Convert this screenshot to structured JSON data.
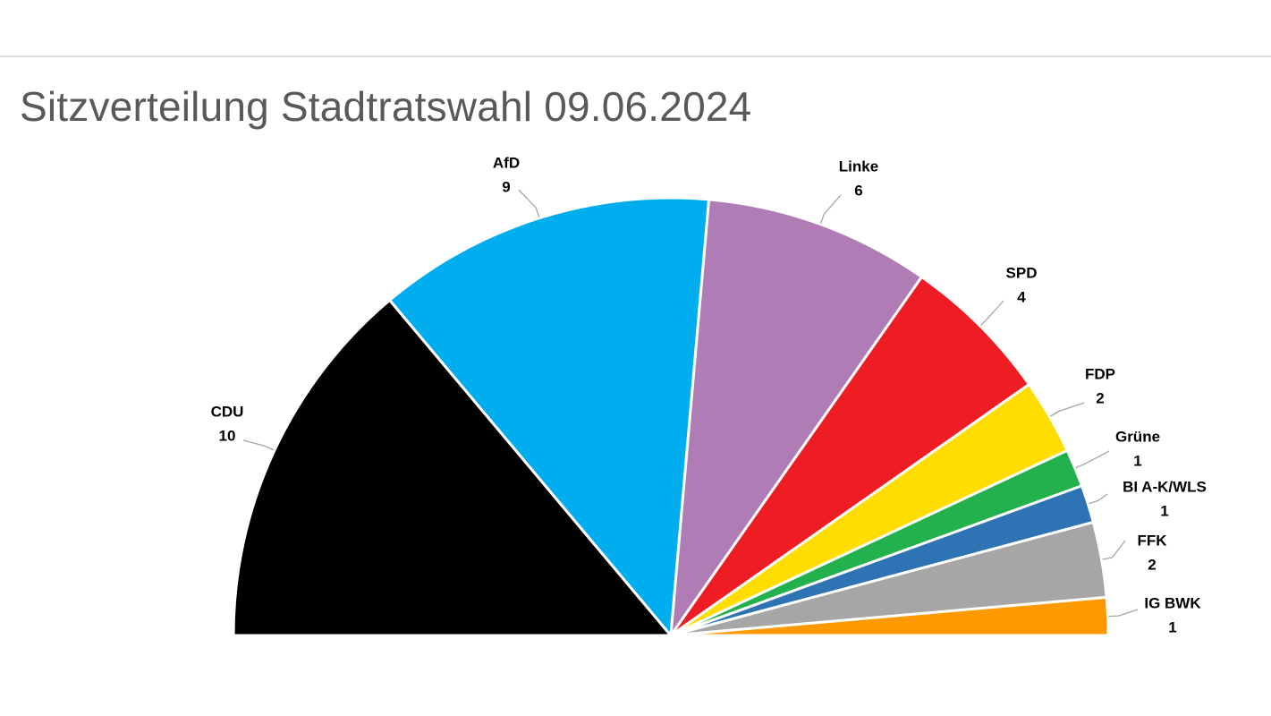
{
  "title": "Sitzverteilung Stadtratswahl 09.06.2024",
  "chart_data": {
    "type": "pie",
    "variant": "half-donut-parliament",
    "title": "Sitzverteilung Stadtratswahl 09.06.2024",
    "categories": [
      "CDU",
      "AfD",
      "Linke",
      "SPD",
      "FDP",
      "Grüne",
      "BI A-K/WLS",
      "FFK",
      "IG BWK"
    ],
    "values": [
      10,
      9,
      6,
      4,
      2,
      1,
      1,
      2,
      1
    ],
    "colors": [
      "#000000",
      "#00AEEF",
      "#B07CB5",
      "#EE1D24",
      "#FFDD00",
      "#22B14C",
      "#2E74B5",
      "#A6A6A6",
      "#FF9900"
    ],
    "value_labels": [
      "10",
      "9",
      "6",
      "4",
      "2",
      "1",
      "1",
      "2",
      "1"
    ],
    "legend": "none",
    "data_labels": "outside-with-leader-lines"
  }
}
